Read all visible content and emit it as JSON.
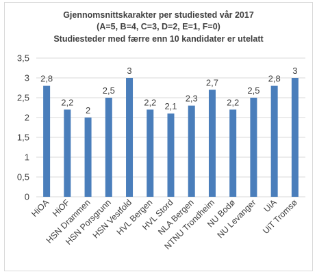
{
  "chart_data": {
    "type": "bar",
    "title_lines": [
      "Gjennomsnittskarakter per studiested vår 2017",
      "(A=5, B=4, C=3, D=2, E=1, F=0)",
      "Studiesteder med færre enn 10 kandidater er utelatt"
    ],
    "categories": [
      "HiOA",
      "HiOF",
      "HSN Drammen",
      "HSN Porsgrunn",
      "HSN Vestfold",
      "HVL Bergen",
      "HVL Stord",
      "NLA Bergen",
      "NTNU Trondheim",
      "NU Bodø",
      "NU Levanger",
      "UiA",
      "UiT Tromsø"
    ],
    "values": [
      2.8,
      2.2,
      2,
      2.5,
      3,
      2.2,
      2.1,
      2.3,
      2.7,
      2.2,
      2.5,
      2.8,
      3
    ],
    "value_labels": [
      "2,8",
      "2,2",
      "2",
      "2,5",
      "3",
      "2,2",
      "2,1",
      "2,3",
      "2,7",
      "2,2",
      "2,5",
      "2,8",
      "3"
    ],
    "yticks": [
      0,
      0.5,
      1,
      1.5,
      2,
      2.5,
      3,
      3.5
    ],
    "ytick_labels": [
      "0",
      "0,5",
      "1",
      "1,5",
      "2",
      "2,5",
      "3",
      "3,5"
    ],
    "ylim": [
      0,
      3.5
    ],
    "xlabel": "",
    "ylabel": "",
    "grid": true,
    "legend": "none",
    "bar_color": "#4a7ebb",
    "grid_color": "#d9d9d9"
  }
}
